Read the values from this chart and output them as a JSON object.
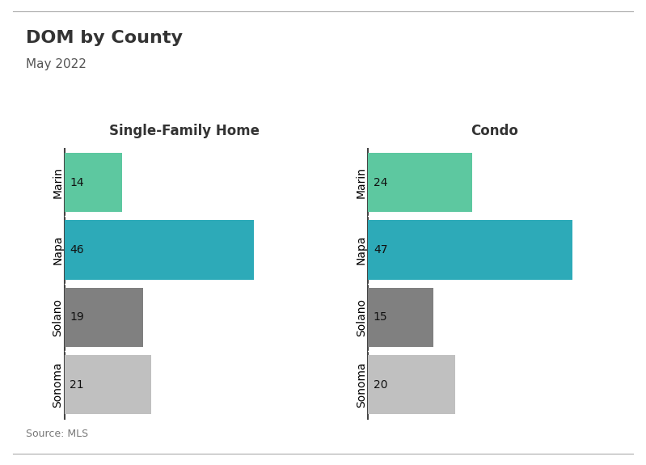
{
  "title": "DOM by County",
  "subtitle": "May 2022",
  "source": "Source: MLS",
  "categories": [
    "Marin",
    "Napa",
    "Solano",
    "Sonoma"
  ],
  "sfh_values": [
    14,
    46,
    19,
    21
  ],
  "condo_values": [
    24,
    47,
    15,
    20
  ],
  "sfh_colors": [
    "#5dc8a0",
    "#2daab8",
    "#808080",
    "#c0c0c0"
  ],
  "condo_colors": [
    "#5dc8a0",
    "#2daab8",
    "#808080",
    "#c0c0c0"
  ],
  "sfh_title": "Single-Family Home",
  "condo_title": "Condo",
  "background_color": "#ffffff",
  "bar_height": 0.88,
  "xlim_sfh": [
    0,
    58
  ],
  "xlim_condo": [
    0,
    58
  ],
  "title_fontsize": 16,
  "subtitle_fontsize": 11,
  "label_fontsize": 10,
  "value_fontsize": 10,
  "source_fontsize": 9
}
